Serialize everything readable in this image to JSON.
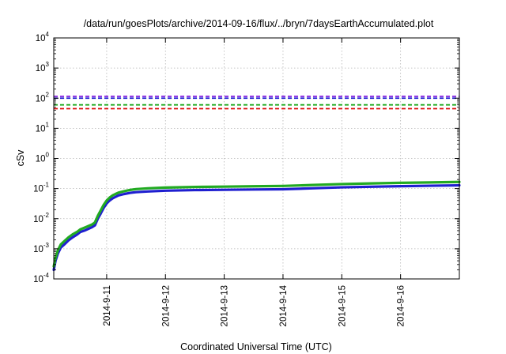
{
  "chart_data": {
    "type": "line",
    "title": "/data/run/goesPlots/archive/2014-09-16/flux/../bryn/7daysEarthAccumulated.plot",
    "xlabel": "Coordinated Universal Time (UTC)",
    "ylabel": "cSv",
    "yscale": "log",
    "ylim": [
      0.0001,
      10000
    ],
    "xlim": [
      0.1,
      7.0
    ],
    "grid": true,
    "x_ticks": [
      {
        "label": "2014-9-11",
        "value": 1
      },
      {
        "label": "2014-9-12",
        "value": 2
      },
      {
        "label": "2014-9-13",
        "value": 3
      },
      {
        "label": "2014-9-14",
        "value": 4
      },
      {
        "label": "2014-9-15",
        "value": 5
      },
      {
        "label": "2014-9-16",
        "value": 6
      }
    ],
    "y_ticks": [
      {
        "base": "10",
        "exp": "-4",
        "value": 0.0001
      },
      {
        "base": "10",
        "exp": "-3",
        "value": 0.001
      },
      {
        "base": "10",
        "exp": "-2",
        "value": 0.01
      },
      {
        "base": "10",
        "exp": "-1",
        "value": 0.1
      },
      {
        "base": "10",
        "exp": "0",
        "value": 1
      },
      {
        "base": "10",
        "exp": "1",
        "value": 10
      },
      {
        "base": "10",
        "exp": "2",
        "value": 100
      },
      {
        "base": "10",
        "exp": "3",
        "value": 1000
      },
      {
        "base": "10",
        "exp": "4",
        "value": 10000
      }
    ],
    "reference_lines": [
      {
        "value": 115,
        "color": "#8a2be2",
        "style": "dashed"
      },
      {
        "value": 100,
        "color": "#1f1fd0",
        "style": "dashed"
      },
      {
        "value": 60,
        "color": "#22aa22",
        "style": "dashed"
      },
      {
        "value": 45,
        "color": "#dd1111",
        "style": "dashed"
      }
    ],
    "series": [
      {
        "color": "#1f1fd0",
        "x": [
          0.1,
          0.13,
          0.17,
          0.22,
          0.28,
          0.35,
          0.42,
          0.5,
          0.55,
          0.62,
          0.68,
          0.75,
          0.8,
          0.85,
          0.9,
          0.95,
          1.0,
          1.05,
          1.1,
          1.15,
          1.2,
          1.3,
          1.4,
          1.5,
          1.7,
          2.0,
          2.5,
          3.0,
          3.5,
          4.0,
          4.5,
          5.0,
          5.5,
          6.0,
          6.5,
          7.0
        ],
        "y": [
          0.0002,
          0.0004,
          0.0007,
          0.0011,
          0.0014,
          0.0019,
          0.0024,
          0.003,
          0.0036,
          0.004,
          0.0045,
          0.0052,
          0.006,
          0.01,
          0.015,
          0.023,
          0.032,
          0.04,
          0.047,
          0.053,
          0.059,
          0.066,
          0.072,
          0.076,
          0.08,
          0.085,
          0.089,
          0.091,
          0.093,
          0.095,
          0.102,
          0.11,
          0.115,
          0.12,
          0.124,
          0.128
        ]
      },
      {
        "color": "#22aa22",
        "x": [
          0.1,
          0.13,
          0.17,
          0.22,
          0.28,
          0.35,
          0.42,
          0.5,
          0.55,
          0.62,
          0.68,
          0.75,
          0.8,
          0.85,
          0.9,
          0.95,
          1.0,
          1.05,
          1.1,
          1.15,
          1.2,
          1.3,
          1.4,
          1.5,
          1.7,
          2.0,
          2.5,
          3.0,
          3.5,
          4.0,
          4.5,
          5.0,
          5.5,
          6.0,
          6.5,
          7.0
        ],
        "y": [
          0.00026,
          0.0005,
          0.0009,
          0.0014,
          0.0018,
          0.0024,
          0.003,
          0.0037,
          0.0044,
          0.005,
          0.0056,
          0.0064,
          0.0075,
          0.0125,
          0.019,
          0.029,
          0.04,
          0.05,
          0.059,
          0.066,
          0.073,
          0.082,
          0.09,
          0.096,
          0.102,
          0.108,
          0.113,
          0.116,
          0.119,
          0.122,
          0.131,
          0.141,
          0.148,
          0.155,
          0.16,
          0.166
        ]
      }
    ]
  }
}
